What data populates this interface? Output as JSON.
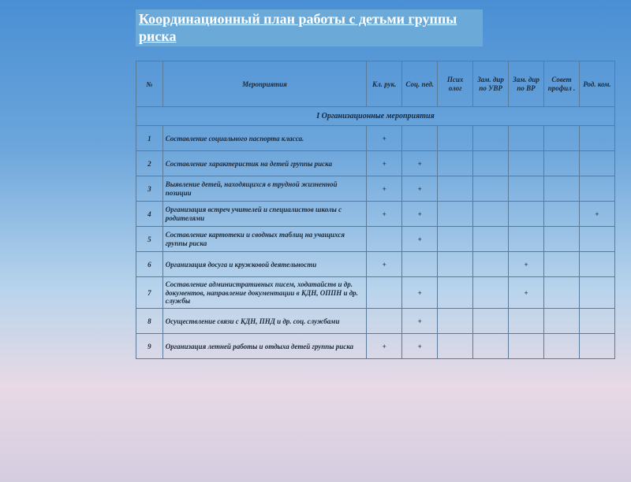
{
  "title": "Координационный план работы с детьми группы риска",
  "headers": {
    "num": "№",
    "event": "Мероприятия",
    "c1": "Кл. рук.",
    "c2": "Соц. пед.",
    "c3": "Псих олог",
    "c4": "Зам. дир по УВР",
    "c5": "Зам. дир по ВР",
    "c6": "Совет профил .",
    "c7": "Род. ком."
  },
  "section": "I Организационные мероприятия",
  "rows": [
    {
      "n": "1",
      "e": "Составление социального паспорта класса.",
      "m": [
        "+",
        "",
        "",
        "",
        "",
        "",
        ""
      ]
    },
    {
      "n": "2",
      "e": "Составление характеристик на детей группы риска",
      "m": [
        "+",
        "+",
        "",
        "",
        "",
        "",
        ""
      ]
    },
    {
      "n": "3",
      "e": "Выявление детей, находящихся в трудной жизненной позиции",
      "m": [
        "+",
        "+",
        "",
        "",
        "",
        "",
        ""
      ]
    },
    {
      "n": "4",
      "e": "Организация встреч учителей и специалистов школы с родителями",
      "m": [
        "+",
        "+",
        "",
        "",
        "",
        "",
        "+"
      ]
    },
    {
      "n": "5",
      "e": "Составление картотеки и сводных таблиц на учащихся группы риска",
      "m": [
        "",
        "+",
        "",
        "",
        "",
        "",
        ""
      ]
    },
    {
      "n": "6",
      "e": "Организация досуга и кружковой деятельности",
      "m": [
        "+",
        "",
        "",
        "",
        "+",
        "",
        ""
      ]
    },
    {
      "n": "7",
      "e": "Составление административных писем, ходатайств и др. документов, направление документации в КДН, ОППН и др. службы",
      "m": [
        "",
        "+",
        "",
        "",
        "+",
        "",
        ""
      ]
    },
    {
      "n": "8",
      "e": "Осуществление связи с КДН, ПНД и др. соц. службами",
      "m": [
        "",
        "+",
        "",
        "",
        "",
        "",
        ""
      ]
    },
    {
      "n": "9",
      "e": "Организация летней работы и отдыха детей группы риска",
      "m": [
        "+",
        "+",
        "",
        "",
        "",
        "",
        ""
      ]
    }
  ]
}
